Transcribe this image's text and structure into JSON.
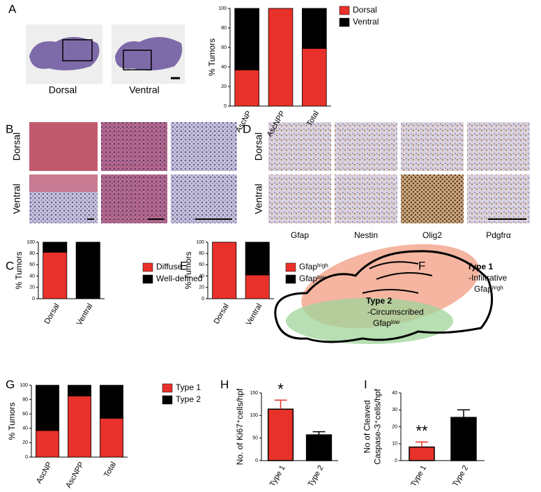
{
  "chart_data": [
    {
      "type": "bar",
      "stacked": true,
      "ylabel": "% Tumors",
      "categories": [
        "AscNP",
        "AscNPP",
        "Total"
      ],
      "series": [
        {
          "name": "Dorsal",
          "color": "#e8312a",
          "values": [
            37,
            100,
            59
          ]
        },
        {
          "name": "Ventral",
          "color": "#000000",
          "values": [
            63,
            0,
            41
          ]
        }
      ],
      "ylim": [
        0,
        100
      ],
      "yticks": [
        0,
        20,
        40,
        60,
        80,
        100
      ]
    },
    {
      "type": "bar",
      "stacked": true,
      "ylabel": "% Tumors",
      "categories": [
        "Dorsal",
        "Ventral"
      ],
      "series": [
        {
          "name": "Diffuse",
          "color": "#e8312a",
          "values": [
            82,
            0
          ]
        },
        {
          "name": "Well-defined",
          "color": "#000000",
          "values": [
            18,
            100
          ]
        }
      ],
      "ylim": [
        0,
        100
      ],
      "yticks": [
        0,
        20,
        40,
        60,
        80,
        100
      ]
    },
    {
      "type": "bar",
      "stacked": true,
      "ylabel": "% Tumors",
      "categories": [
        "Dorsal",
        "Ventral"
      ],
      "series": [
        {
          "name": "Gfapʰⁱᵍʰ",
          "color": "#e8312a",
          "values": [
            100,
            42
          ]
        },
        {
          "name": "Gfapˡᵒʷ",
          "color": "#000000",
          "values": [
            0,
            58
          ]
        }
      ],
      "ylim": [
        0,
        100
      ],
      "yticks": [
        0,
        20,
        40,
        60,
        80,
        100
      ]
    },
    {
      "type": "bar",
      "stacked": true,
      "ylabel": "% Tumors",
      "categories": [
        "AscNP",
        "AscNPP",
        "Total"
      ],
      "series": [
        {
          "name": "Type 1",
          "color": "#e8312a",
          "values": [
            37,
            85,
            54
          ]
        },
        {
          "name": "Type 2",
          "color": "#000000",
          "values": [
            63,
            15,
            46
          ]
        }
      ],
      "ylim": [
        0,
        100
      ],
      "yticks": [
        0,
        20,
        40,
        60,
        80,
        100
      ]
    },
    {
      "type": "bar",
      "stacked": false,
      "ylabel": [
        "No. of Ki67⁺cells/hpf"
      ],
      "categories": [
        "Type 1",
        "Type 2"
      ],
      "values": [
        114,
        57
      ],
      "errors": [
        20,
        7
      ],
      "colors": [
        "#e8312a",
        "#000000"
      ],
      "annotation": "*",
      "ylim": [
        0,
        150
      ],
      "yticks": [
        0,
        50,
        100,
        150
      ]
    },
    {
      "type": "bar",
      "stacked": false,
      "ylabel": [
        "No of Cleaved",
        "Caspase-3⁺cells/hpf"
      ],
      "categories": [
        "Type 1",
        "Type 2"
      ],
      "values": [
        8,
        25.5
      ],
      "errors": [
        3,
        4.5
      ],
      "colors": [
        "#e8312a",
        "#000000"
      ],
      "annotation": "**",
      "ylim": [
        0,
        40
      ],
      "yticks": [
        0,
        10,
        20,
        30,
        40
      ]
    }
  ],
  "panel_labels": [
    "A",
    "B",
    "C",
    "D",
    "E",
    "F",
    "G",
    "H",
    "I"
  ],
  "panel_a": {
    "image_labels": [
      "Dorsal",
      "Ventral"
    ]
  },
  "panel_b": {
    "row_labels": [
      "Dorsal",
      "Ventral"
    ]
  },
  "panel_d": {
    "row_labels": [
      "Dorsal",
      "Ventral"
    ],
    "column_labels": [
      "Gfap",
      "Nestin",
      "Olig2",
      "Pdgfrα"
    ]
  },
  "panel_f": {
    "type1": [
      "Type 1",
      "-Infiltrative",
      "Gfapʰⁱᵍʰ"
    ],
    "type2": [
      "Type 2",
      "-Circumscribed",
      "Gfapˡᵒʷ"
    ]
  }
}
